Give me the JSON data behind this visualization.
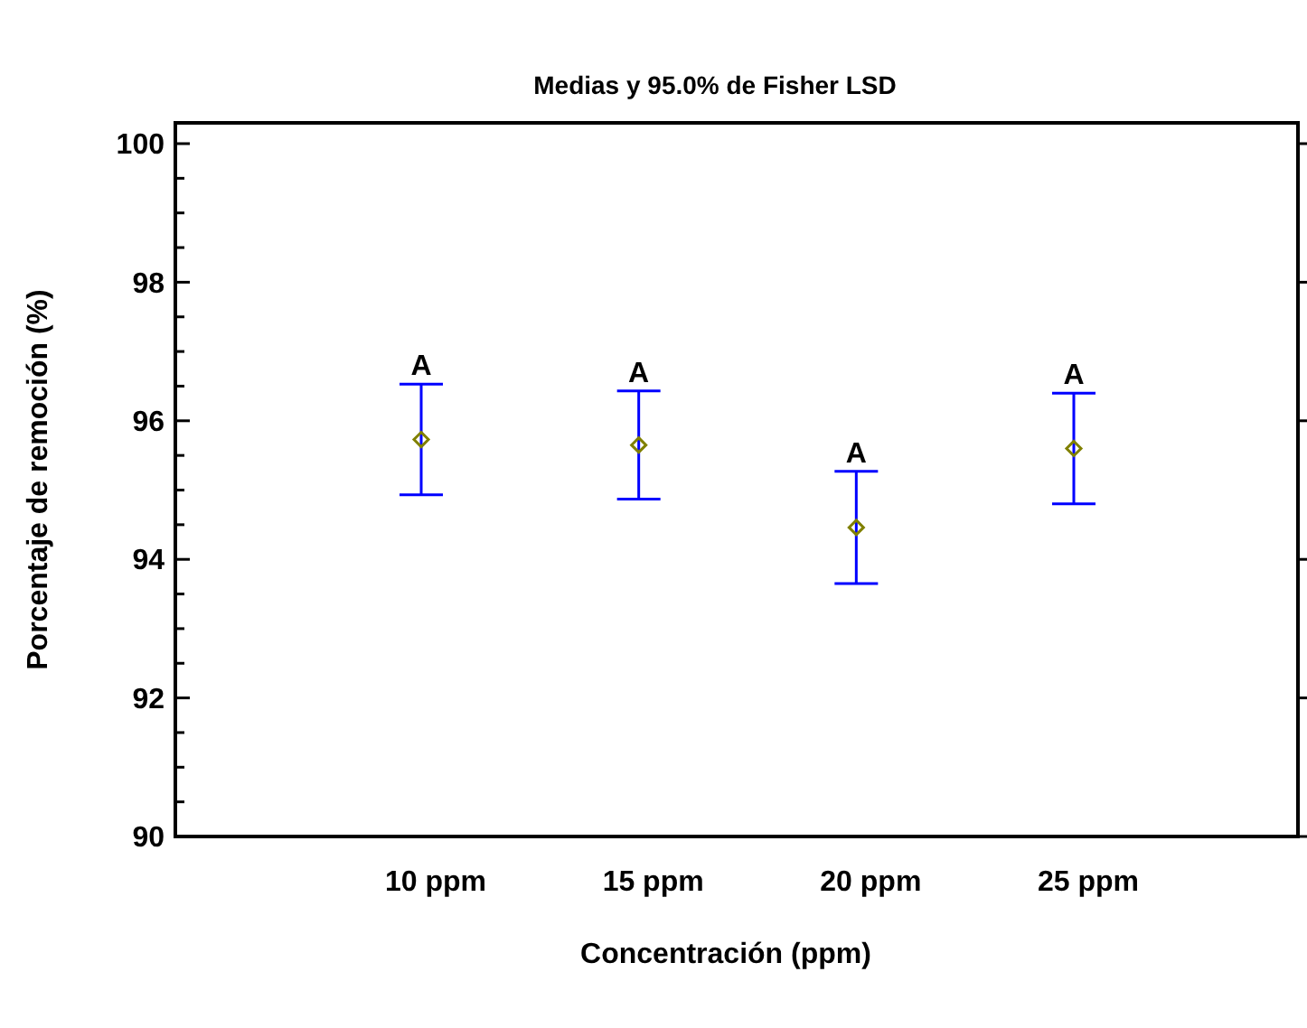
{
  "chart_data": {
    "type": "scatter",
    "title": "Medias y 95.0% de Fisher LSD",
    "xlabel": "Concentración (ppm)",
    "ylabel": "Porcentaje de remoción (%)",
    "categories": [
      "10 ppm",
      "15 ppm",
      "20 ppm",
      "25 ppm"
    ],
    "series": [
      {
        "color": "#808000",
        "values": [
          95.73,
          95.65,
          94.46,
          95.6
        ],
        "errors": [
          0.8,
          0.78,
          0.81,
          0.8
        ]
      }
    ],
    "marker": "diamond",
    "ylim": [
      90,
      100.3
    ],
    "yticks": [
      90,
      {
        "value": 90.5,
        "label": null
      },
      {
        "value": 91,
        "label": null
      },
      {
        "value": 91.5,
        "label": null
      },
      92,
      {
        "value": 92.5,
        "label": null
      },
      {
        "value": 93,
        "label": null
      },
      {
        "value": 93.5,
        "label": null
      },
      94,
      {
        "value": 94.5,
        "label": null
      },
      {
        "value": 95,
        "label": null
      },
      {
        "value": 95.5,
        "label": null
      },
      96,
      {
        "value": 96.5,
        "label": null
      },
      {
        "value": 97,
        "label": null
      },
      {
        "value": 97.5,
        "label": null
      },
      98,
      {
        "value": 98.5,
        "label": null
      },
      {
        "value": 99,
        "label": null
      },
      {
        "value": 99.5,
        "label": null
      },
      100
    ],
    "annotations": [
      {
        "text": "A",
        "x": "10 ppm",
        "y": 96.53
      },
      {
        "text": "A",
        "x": "15 ppm",
        "y": 96.43
      },
      {
        "text": "A",
        "x": "20 ppm",
        "y": 95.27
      },
      {
        "text": "A",
        "x": "25 ppm",
        "y": 96.4
      }
    ]
  }
}
